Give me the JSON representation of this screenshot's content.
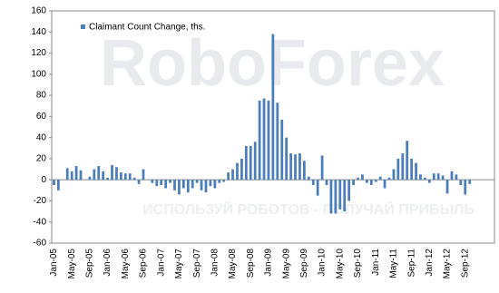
{
  "chart_data": {
    "type": "bar",
    "legend": "Claimant Count Change, ths.",
    "watermark": "RoboForex",
    "watermark_slogan": "ИСПОЛЬЗУЙ РОБОТОВ - ПОЛУЧАЙ ПРИБЫЛЬ",
    "color": "#4a7ebb",
    "categories": [
      "Jan-05",
      null,
      null,
      null,
      "May-05",
      null,
      null,
      null,
      "Sep-05",
      null,
      null,
      null,
      "Jan-06",
      null,
      null,
      null,
      "May-06",
      null,
      null,
      null,
      "Sep-06",
      null,
      null,
      null,
      "Jan-07",
      null,
      null,
      null,
      "May-07",
      null,
      null,
      null,
      "Sep-07",
      null,
      null,
      null,
      "Jan-08",
      null,
      null,
      null,
      "May-08",
      null,
      null,
      null,
      "Sep-08",
      null,
      null,
      null,
      "Jan-09",
      null,
      null,
      null,
      "May-09",
      null,
      null,
      null,
      "Sep-09",
      null,
      null,
      null,
      "Jan-10",
      null,
      null,
      null,
      "May-10",
      null,
      null,
      null,
      "Sep-10",
      null,
      null,
      null,
      "Jan-11",
      null,
      null,
      null,
      "May-11",
      null,
      null,
      null,
      "Sep-11",
      null,
      null,
      null,
      "Jan-12",
      null,
      null,
      null,
      "May-12",
      null,
      null,
      null,
      "Sep-12",
      null,
      null,
      null
    ],
    "values": [
      -5,
      -10,
      0,
      11,
      8,
      13,
      9,
      0,
      3,
      10,
      13,
      8,
      2,
      14,
      12,
      7,
      6,
      6,
      2,
      -4,
      10,
      0,
      -3,
      -6,
      -5,
      -8,
      -3,
      -10,
      -14,
      -8,
      -12,
      -8,
      -3,
      -10,
      -12,
      -6,
      -8,
      -3,
      -2,
      7,
      10,
      16,
      20,
      32,
      32,
      36,
      75,
      77,
      75,
      138,
      73,
      57,
      40,
      25,
      24,
      25,
      18,
      3,
      -5,
      -15,
      23,
      -5,
      -32,
      -32,
      -28,
      -30,
      -20,
      -5,
      2,
      5,
      -3,
      -5,
      -2,
      3,
      -8,
      2,
      10,
      20,
      25,
      37,
      20,
      16,
      5,
      2,
      -3,
      6,
      6,
      4,
      -13,
      8,
      5,
      -5,
      -14,
      -4,
      null,
      null
    ],
    "ylim": [
      -60,
      160
    ],
    "yticks": [
      -60,
      -40,
      -20,
      0,
      20,
      40,
      60,
      80,
      100,
      120,
      140,
      160
    ],
    "grid": false
  }
}
